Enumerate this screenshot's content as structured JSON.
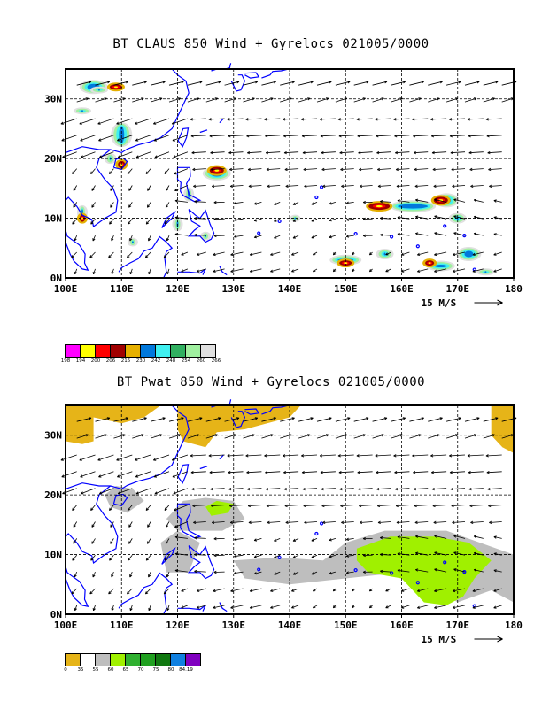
{
  "panels": [
    {
      "title": "BT CLAUS 850 Wind + Gyrelocs 021005/0000",
      "lon_ticks": [
        "100E",
        "110E",
        "120E",
        "130E",
        "140E",
        "150E",
        "160E",
        "170E",
        "180"
      ],
      "lat_ticks": [
        "30N",
        "20N",
        "10N",
        "0N"
      ],
      "vector_ref_label": "15 M/S",
      "legend_colors": [
        "#ff00ff",
        "#ffff00",
        "#ff0000",
        "#a00000",
        "#e6b000",
        "#0078dc",
        "#40f0f0",
        "#30b060",
        "#a0f0a0",
        "#e0e0e0"
      ],
      "legend_labels": [
        "198",
        "194",
        "200",
        "206",
        "215",
        "230",
        "242",
        "248",
        "254",
        "260",
        "266"
      ]
    },
    {
      "title": "BT Pwat 850 Wind + Gyrelocs 021005/0000",
      "lon_ticks": [
        "100E",
        "110E",
        "120E",
        "130E",
        "140E",
        "150E",
        "160E",
        "170E",
        "180"
      ],
      "lat_ticks": [
        "30N",
        "20N",
        "10N",
        "0N"
      ],
      "vector_ref_label": "15 M/S",
      "legend_colors": [
        "#e6b418",
        "#ffffff",
        "#bebebe",
        "#a0f000",
        "#30b030",
        "#20a020",
        "#107810",
        "#1080e0",
        "#8000c0"
      ],
      "legend_labels": [
        "0",
        "35",
        "55",
        "60",
        "65",
        "70",
        "75",
        "80",
        "84.19"
      ]
    }
  ],
  "colors": {
    "coastline": "#0000ff",
    "pwat_dry": "#e6b418",
    "pwat_mid": "#bebebe",
    "pwat_wet": "#a0f000"
  }
}
